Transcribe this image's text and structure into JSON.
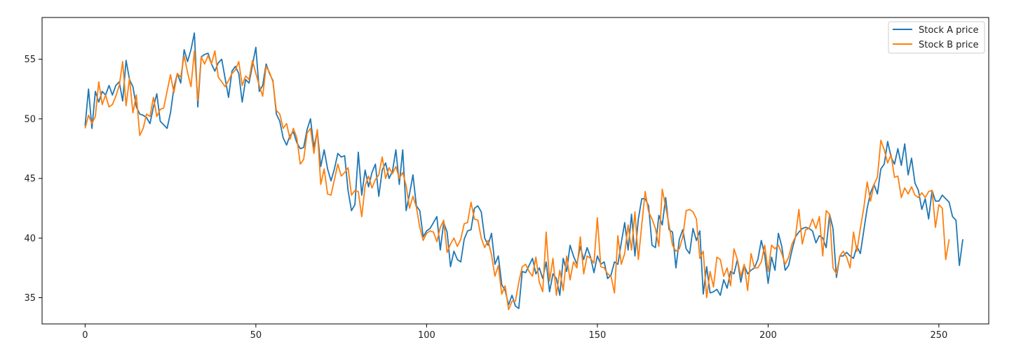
{
  "chart_data": {
    "type": "line",
    "title": "",
    "xlabel": "",
    "ylabel": "",
    "xlim": [
      -12.6,
      264.6
    ],
    "ylim": [
      32.8,
      58.5
    ],
    "xticks": [
      0,
      50,
      100,
      150,
      200,
      250
    ],
    "yticks": [
      35,
      40,
      45,
      50,
      55
    ],
    "grid": false,
    "legend_position": "top-right",
    "series": [
      {
        "name": "Stock A price",
        "color": "#1f77b4",
        "values": [
          49.4,
          52.5,
          49.2,
          52.3,
          51.4,
          52.3,
          52.0,
          52.8,
          52.0,
          52.8,
          53.1,
          51.5,
          54.9,
          53.3,
          52.7,
          51.0,
          50.4,
          50.3,
          50.1,
          49.6,
          51.0,
          52.1,
          49.8,
          49.5,
          49.2,
          50.5,
          52.6,
          53.8,
          53.0,
          55.8,
          54.8,
          55.8,
          57.2,
          51.0,
          55.2,
          55.4,
          55.5,
          54.6,
          54.0,
          54.7,
          55.0,
          53.4,
          51.8,
          54.0,
          54.4,
          53.8,
          51.4,
          53.3,
          53.0,
          54.5,
          56.0,
          52.3,
          52.8,
          54.6,
          53.8,
          53.2,
          50.4,
          49.8,
          48.4,
          47.8,
          48.6,
          48.9,
          48.0,
          47.5,
          47.6,
          49.1,
          50.0,
          47.6,
          49.0,
          46.0,
          47.4,
          45.8,
          44.8,
          45.8,
          47.1,
          46.8,
          46.9,
          44.0,
          42.3,
          42.8,
          47.2,
          43.6,
          45.7,
          44.3,
          45.5,
          46.2,
          43.5,
          45.7,
          46.3,
          45.0,
          45.6,
          47.4,
          44.5,
          47.4,
          42.3,
          43.7,
          45.3,
          42.7,
          42.3,
          40.1,
          40.6,
          40.8,
          41.3,
          41.8,
          39.0,
          41.3,
          40.5,
          37.6,
          38.9,
          38.2,
          38.0,
          39.9,
          40.6,
          40.7,
          42.5,
          42.7,
          42.2,
          40.0,
          39.4,
          40.4,
          37.8,
          38.5,
          36.1,
          35.6,
          34.4,
          35.2,
          34.3,
          34.1,
          37.2,
          37.1,
          37.7,
          38.3,
          37.0,
          37.5,
          36.6,
          38.0,
          35.5,
          37.0,
          36.6,
          35.2,
          38.3,
          37.2,
          39.4,
          38.5,
          37.8,
          39.3,
          38.2,
          39.2,
          38.4,
          37.1,
          38.5,
          37.8,
          38.0,
          36.6,
          36.9,
          38.0,
          37.8,
          39.6,
          41.3,
          39.0,
          42.0,
          38.5,
          41.6,
          43.3,
          43.3,
          42.7,
          39.4,
          39.2,
          41.9,
          41.1,
          43.4,
          40.7,
          40.5,
          37.5,
          39.9,
          40.7,
          39.1,
          38.7,
          40.8,
          39.8,
          40.6,
          35.3,
          37.6,
          35.4,
          35.5,
          35.7,
          35.2,
          36.5,
          35.8,
          37.2,
          37.0,
          38.2,
          36.3,
          37.7,
          37.0,
          37.3,
          37.5,
          38.2,
          39.8,
          38.6,
          36.2,
          38.4,
          37.3,
          40.4,
          39.3,
          37.3,
          37.7,
          39.0,
          40.1,
          40.5,
          40.8,
          40.9,
          40.8,
          40.6,
          39.6,
          40.2,
          40.0,
          39.2,
          42.0,
          40.8,
          36.7,
          38.5,
          38.5,
          38.8,
          38.5,
          38.3,
          39.3,
          38.7,
          40.6,
          42.5,
          43.8,
          44.5,
          43.7,
          45.8,
          46.2,
          48.1,
          46.8,
          46.2,
          47.5,
          46.1,
          47.9,
          45.3,
          46.7,
          44.6,
          44.0,
          42.4,
          43.3,
          41.6,
          44.0,
          43.1,
          43.1,
          43.6,
          43.3,
          43.0,
          41.8,
          41.5,
          37.7,
          39.9
        ]
      },
      {
        "name": "Stock B price",
        "color": "#ff7f0e",
        "values": [
          49.2,
          50.3,
          49.6,
          50.2,
          53.1,
          51.2,
          52.0,
          51.0,
          51.2,
          51.9,
          52.8,
          54.8,
          51.1,
          53.4,
          50.5,
          52.0,
          48.6,
          49.2,
          50.4,
          50.2,
          51.8,
          50.2,
          50.8,
          50.9,
          52.3,
          53.7,
          52.2,
          53.8,
          53.5,
          55.3,
          53.9,
          52.7,
          55.7,
          51.5,
          55.2,
          54.6,
          55.3,
          54.6,
          55.7,
          53.5,
          53.1,
          52.7,
          53.2,
          53.8,
          54.1,
          54.8,
          52.8,
          53.6,
          53.3,
          54.9,
          53.8,
          52.8,
          51.9,
          54.4,
          53.9,
          53.1,
          50.7,
          50.4,
          49.2,
          49.6,
          48.3,
          49.2,
          48.4,
          46.2,
          46.6,
          48.8,
          49.2,
          47.1,
          49.1,
          44.5,
          45.8,
          43.7,
          43.6,
          44.9,
          46.2,
          45.2,
          45.5,
          45.9,
          43.6,
          44.0,
          43.9,
          41.8,
          44.4,
          45.2,
          44.2,
          44.9,
          45.3,
          46.8,
          45.0,
          45.9,
          45.4,
          46.0,
          45.0,
          45.5,
          44.4,
          42.5,
          43.5,
          42.6,
          40.9,
          39.8,
          40.4,
          40.6,
          40.5,
          39.7,
          40.9,
          41.5,
          38.8,
          39.5,
          40.0,
          39.3,
          39.9,
          41.2,
          41.3,
          43.0,
          41.6,
          41.5,
          40.0,
          39.2,
          39.8,
          38.6,
          36.8,
          37.7,
          35.3,
          36.0,
          34.0,
          34.7,
          34.7,
          36.3,
          37.6,
          37.8,
          37.2,
          36.8,
          38.4,
          36.3,
          35.5,
          40.5,
          36.4,
          38.3,
          35.2,
          37.3,
          35.6,
          38.5,
          36.5,
          38.0,
          37.5,
          40.1,
          37.0,
          38.5,
          38.3,
          37.9,
          41.7,
          37.6,
          37.5,
          37.0,
          36.8,
          35.4,
          40.2,
          37.8,
          38.7,
          41.1,
          39.0,
          42.2,
          38.2,
          41.1,
          43.9,
          42.2,
          41.6,
          40.8,
          39.3,
          44.1,
          42.6,
          41.1,
          39.4,
          38.9,
          39.1,
          40.1,
          42.3,
          42.4,
          42.2,
          41.6,
          38.3,
          38.9,
          35.0,
          37.2,
          35.9,
          38.4,
          38.2,
          36.8,
          37.5,
          36.0,
          39.1,
          38.2,
          36.8,
          37.8,
          35.6,
          38.7,
          37.5,
          37.5,
          38.0,
          39.4,
          37.2,
          39.4,
          39.1,
          39.4,
          38.7,
          37.8,
          38.4,
          39.5,
          40.1,
          42.4,
          39.5,
          40.7,
          40.8,
          41.6,
          40.8,
          41.8,
          38.5,
          42.3,
          42.0,
          37.5,
          37.0,
          38.5,
          38.9,
          38.4,
          37.5,
          40.5,
          38.9,
          40.8,
          42.5,
          44.7,
          43.1,
          44.5,
          45.1,
          48.2,
          47.4,
          46.3,
          47.0,
          45.1,
          45.2,
          43.4,
          44.2,
          43.7,
          44.3,
          43.6,
          43.4,
          43.8,
          43.4,
          43.9,
          44.0,
          40.9,
          42.8,
          42.5,
          38.2,
          39.9
        ]
      }
    ]
  }
}
